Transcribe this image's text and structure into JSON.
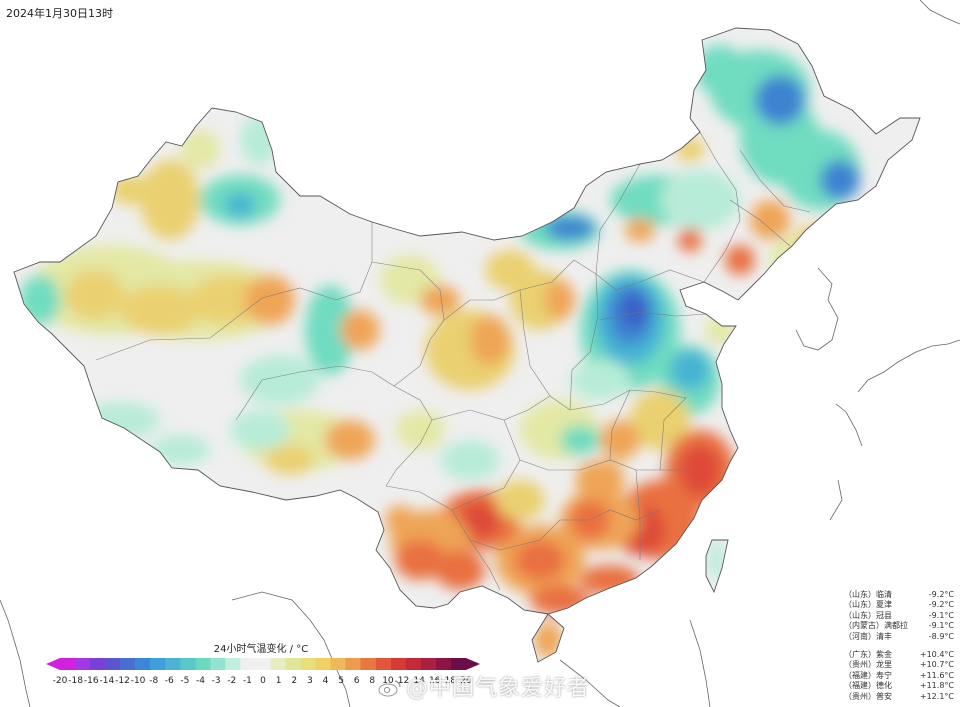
{
  "header": {
    "timestamp": "2024年1月30日13时"
  },
  "legend": {
    "title": "24小时气温变化 / °C",
    "ticks": [
      "-20",
      "-18",
      "-16",
      "-14",
      "-12",
      "-10",
      "-8",
      "-6",
      "-5",
      "-4",
      "-3",
      "-2",
      "-1",
      "0",
      "1",
      "2",
      "3",
      "4",
      "5",
      "6",
      "8",
      "10",
      "12",
      "14",
      "16",
      "18",
      "20"
    ],
    "colors": [
      "#d21fe0",
      "#a437e6",
      "#7a3fd8",
      "#5a54d0",
      "#4a6fd2",
      "#3b87d6",
      "#3f9fd8",
      "#4cb3d3",
      "#5ac7c8",
      "#6dd8c0",
      "#93e4cf",
      "#c2eee0",
      "#f0f0f0",
      "#f0f0f0",
      "#e9ecbe",
      "#dfe69a",
      "#e8de7c",
      "#f0cf66",
      "#f1b85a",
      "#ee9b4e",
      "#e8783f",
      "#e1563a",
      "#d63a35",
      "#c42b3a",
      "#a81f3f",
      "#8a1446",
      "#6a0e4a"
    ]
  },
  "stations": {
    "drops": [
      {
        "loc": "（山东）临清",
        "value": "-9.2°C"
      },
      {
        "loc": "（山东）夏津",
        "value": "-9.2°C"
      },
      {
        "loc": "（山东）冠县",
        "value": "-9.1°C"
      },
      {
        "loc": "（内蒙古）满都拉",
        "value": "-9.1°C"
      },
      {
        "loc": "（河南）清丰",
        "value": "-8.9°C"
      }
    ],
    "rises": [
      {
        "loc": "（广东）紫金",
        "value": "+10.4°C"
      },
      {
        "loc": "（贵州）龙里",
        "value": "+10.7°C"
      },
      {
        "loc": "（福建）寿宁",
        "value": "+11.6°C"
      },
      {
        "loc": "（福建）德化",
        "value": "+11.8°C"
      },
      {
        "loc": "（贵州）普安",
        "value": "+12.1°C"
      }
    ]
  },
  "watermark": {
    "text": "@中国气象爱好者",
    "logo_icon": "weibo-logo"
  },
  "map": {
    "colors": {
      "neutral": "#efefef",
      "light_cool": "#b7ecd8",
      "cool": "#6fdcc0",
      "cold": "#46b3d3",
      "colder": "#3e83d0",
      "coldest": "#3a5fc8",
      "light_warm": "#e3e8a4",
      "warm": "#ead070",
      "warmer": "#efa456",
      "hot": "#e97040",
      "hotter": "#de4a38",
      "border": "#555555"
    }
  }
}
